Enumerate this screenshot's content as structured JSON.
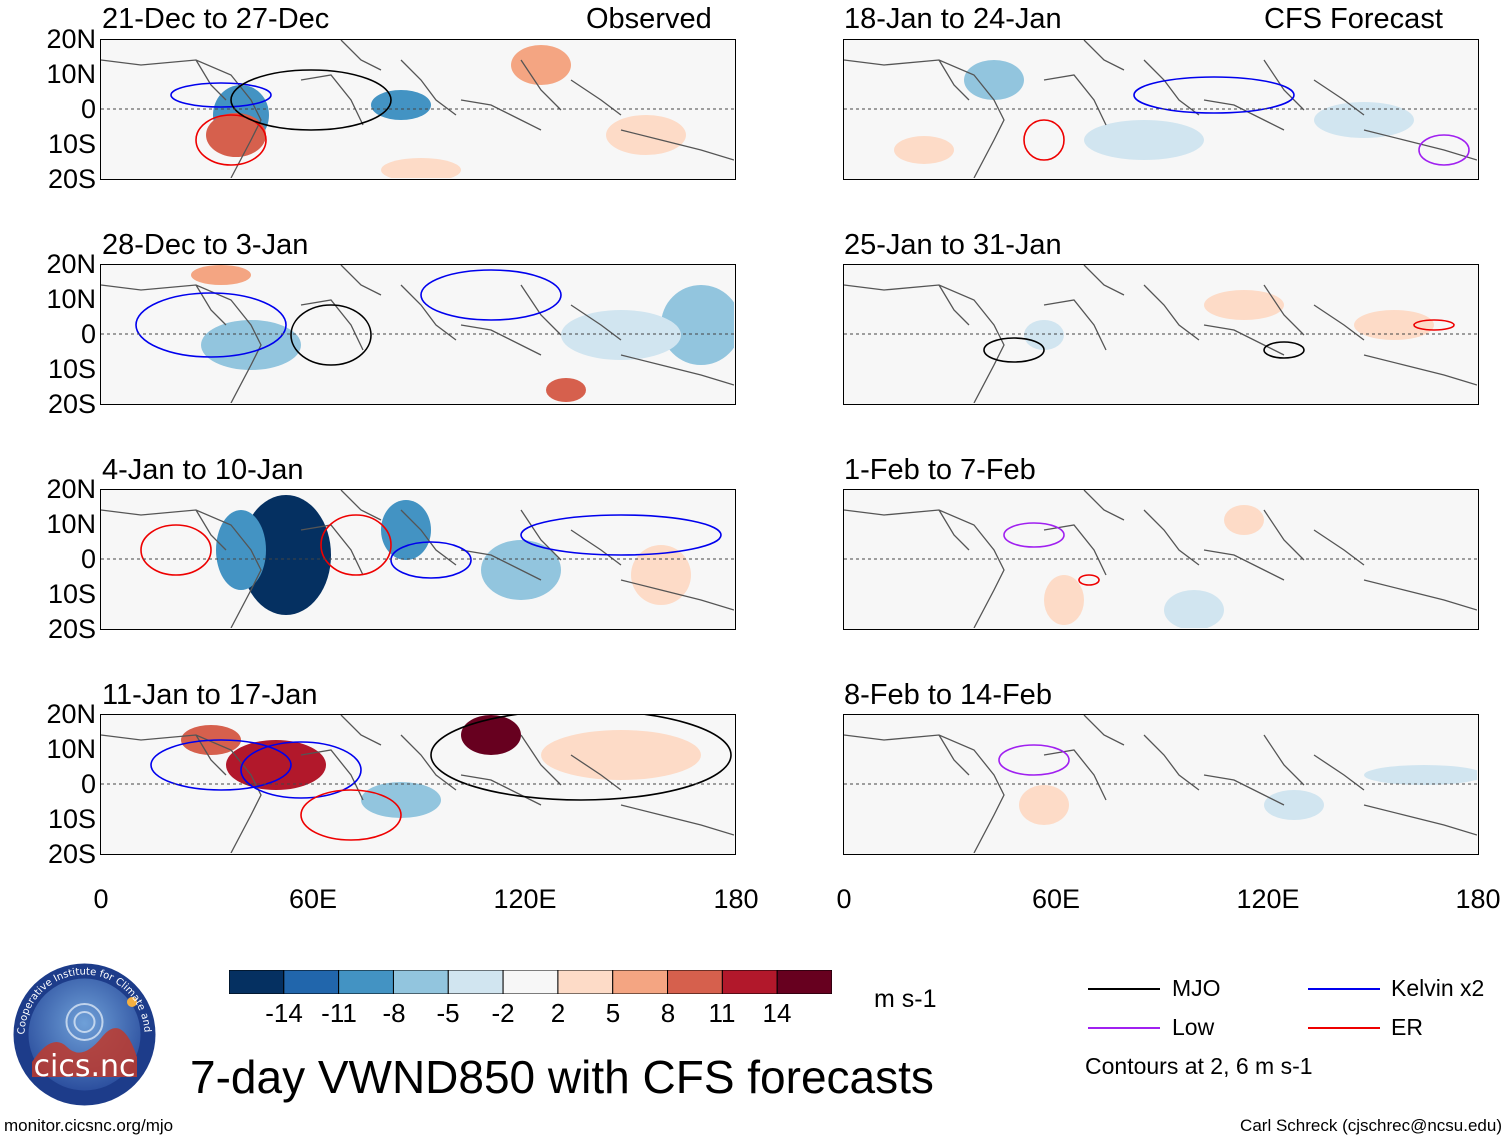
{
  "title": "7-day VWND850 with CFS forecasts",
  "header_left_tag": "Observed",
  "header_right_tag": "CFS Forecast",
  "lat_labels": [
    "20N",
    "10N",
    "0",
    "10S",
    "20S"
  ],
  "lon_labels": [
    "0",
    "60E",
    "120E",
    "180"
  ],
  "left_panels": [
    {
      "period": "21-Dec to 27-Dec"
    },
    {
      "period": "28-Dec to 3-Jan"
    },
    {
      "period": "4-Jan to 10-Jan"
    },
    {
      "period": "11-Jan to 17-Jan"
    }
  ],
  "right_panels": [
    {
      "period": "18-Jan to 24-Jan"
    },
    {
      "period": "25-Jan to 31-Jan"
    },
    {
      "period": "1-Feb to 7-Feb"
    },
    {
      "period": "8-Feb to 14-Feb"
    }
  ],
  "colorbar": {
    "labels": [
      "-14",
      "-11",
      "-8",
      "-5",
      "-2",
      "2",
      "5",
      "8",
      "11",
      "14"
    ],
    "colors": [
      "#053061",
      "#2166ac",
      "#4393c3",
      "#92c5de",
      "#d1e5f0",
      "#f7f7f7",
      "#fddbc7",
      "#f4a582",
      "#d6604d",
      "#b2182b",
      "#67001f"
    ],
    "units": "m s-1"
  },
  "legend": {
    "items": [
      {
        "label": "MJO",
        "color": "#000000"
      },
      {
        "label": "Kelvin x2",
        "color": "#0000ee"
      },
      {
        "label": "Low",
        "color": "#a020f0"
      },
      {
        "label": "ER",
        "color": "#ee0000"
      }
    ],
    "note": "Contours at 2, 6 m s-1"
  },
  "logo": {
    "text": "cics.nc",
    "ring_text": "Cooperative Institute for Climate and Satellites"
  },
  "footer_left": "monitor.cicsnc.org/mjo",
  "footer_right": "Carl Schreck (cjschrec@ncsu.edu)"
}
